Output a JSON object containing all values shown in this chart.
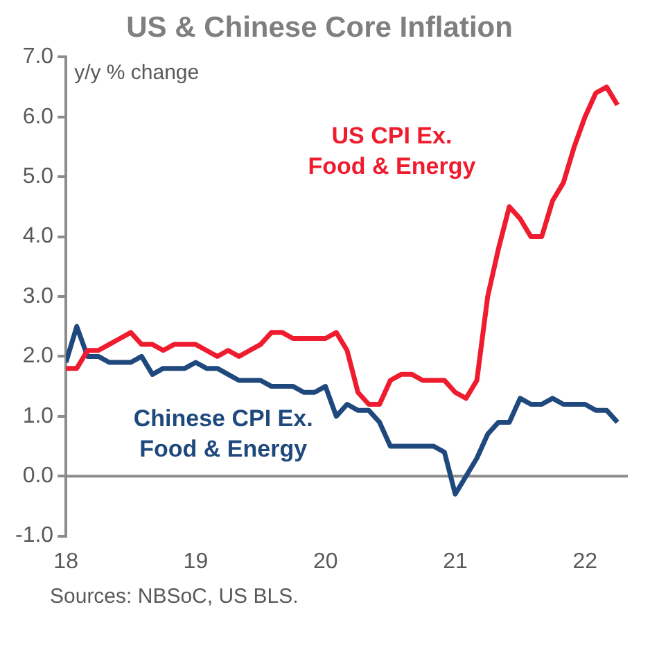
{
  "chart_data": {
    "type": "line",
    "title": "US & Chinese Core Inflation",
    "ylabel": "y/y % change",
    "x": [
      2018,
      2018.0833,
      2018.1667,
      2018.25,
      2018.3333,
      2018.4167,
      2018.5,
      2018.5833,
      2018.6667,
      2018.75,
      2018.8333,
      2018.9167,
      2019,
      2019.0833,
      2019.1667,
      2019.25,
      2019.3333,
      2019.4167,
      2019.5,
      2019.5833,
      2019.6667,
      2019.75,
      2019.8333,
      2019.9167,
      2020,
      2020.0833,
      2020.1667,
      2020.25,
      2020.3333,
      2020.4167,
      2020.5,
      2020.5833,
      2020.6667,
      2020.75,
      2020.8333,
      2020.9167,
      2021,
      2021.0833,
      2021.1667,
      2021.25,
      2021.3333,
      2021.4167,
      2021.5,
      2021.5833,
      2021.6667,
      2021.75,
      2021.8333,
      2021.9167,
      2022,
      2022.0833,
      2022.1667,
      2022.25
    ],
    "series": [
      {
        "name": "US CPI Ex. Food & Energy",
        "color": "#ee1c2e",
        "values": [
          1.8,
          1.8,
          2.1,
          2.1,
          2.2,
          2.3,
          2.4,
          2.2,
          2.2,
          2.1,
          2.2,
          2.2,
          2.2,
          2.1,
          2.0,
          2.1,
          2.0,
          2.1,
          2.2,
          2.4,
          2.4,
          2.3,
          2.3,
          2.3,
          2.3,
          2.4,
          2.1,
          1.4,
          1.2,
          1.2,
          1.6,
          1.7,
          1.7,
          1.6,
          1.6,
          1.6,
          1.4,
          1.3,
          1.6,
          3.0,
          3.8,
          4.5,
          4.3,
          4.0,
          4.0,
          4.6,
          4.9,
          5.5,
          6.0,
          6.4,
          6.5,
          6.2
        ]
      },
      {
        "name": "Chinese CPI Ex. Food & Energy",
        "color": "#1f497d",
        "values": [
          1.9,
          2.5,
          2.0,
          2.0,
          1.9,
          1.9,
          1.9,
          2.0,
          1.7,
          1.8,
          1.8,
          1.8,
          1.9,
          1.8,
          1.8,
          1.7,
          1.6,
          1.6,
          1.6,
          1.5,
          1.5,
          1.5,
          1.4,
          1.4,
          1.5,
          1.0,
          1.2,
          1.1,
          1.1,
          0.9,
          0.5,
          0.5,
          0.5,
          0.5,
          0.5,
          0.4,
          -0.3,
          0.0,
          0.3,
          0.7,
          0.9,
          0.9,
          1.3,
          1.2,
          1.2,
          1.3,
          1.2,
          1.2,
          1.2,
          1.1,
          1.1,
          0.9
        ]
      }
    ],
    "xlim": [
      2018,
      2022.33
    ],
    "xticks": [
      {
        "value": 2018,
        "label": "18"
      },
      {
        "value": 2019,
        "label": "19"
      },
      {
        "value": 2020,
        "label": "20"
      },
      {
        "value": 2021,
        "label": "21"
      },
      {
        "value": 2022,
        "label": "22"
      }
    ],
    "ylim": [
      -1,
      7
    ],
    "yticks": [
      {
        "value": -1,
        "label": "-1.0"
      },
      {
        "value": 0,
        "label": "0.0"
      },
      {
        "value": 1,
        "label": "1.0"
      },
      {
        "value": 2,
        "label": "2.0"
      },
      {
        "value": 3,
        "label": "3.0"
      },
      {
        "value": 4,
        "label": "4.0"
      },
      {
        "value": 5,
        "label": "5.0"
      },
      {
        "value": 6,
        "label": "6.0"
      },
      {
        "value": 7,
        "label": "7.0"
      }
    ],
    "ref_lines": [
      {
        "axis": "y",
        "value": 0,
        "color": "#8c8c8c"
      }
    ],
    "grid": false,
    "legend": false,
    "marker": "none",
    "line_style": "solid",
    "annotations": [
      "Sources: NBSoC, US BLS."
    ]
  }
}
